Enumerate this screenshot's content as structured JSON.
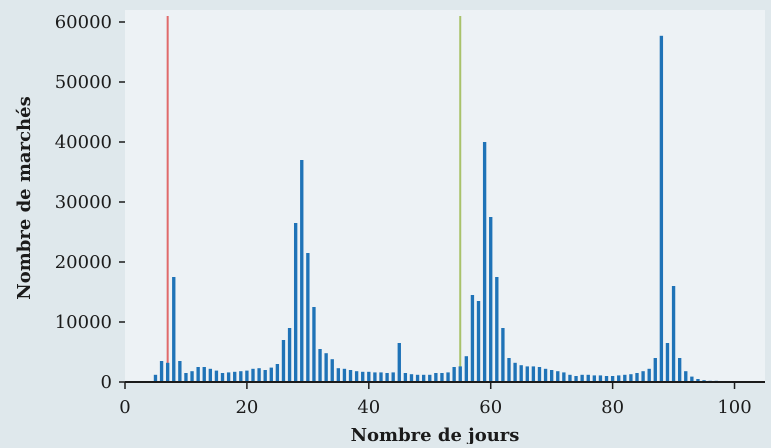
{
  "chart_data": {
    "type": "bar",
    "title": "",
    "xlabel": "Nombre de jours",
    "ylabel": "Nombre de marchés",
    "xlim": [
      0,
      105
    ],
    "ylim": [
      0,
      60000
    ],
    "x_ticks": [
      0,
      20,
      40,
      60,
      80,
      100
    ],
    "y_ticks": [
      0,
      10000,
      20000,
      30000,
      40000,
      50000,
      60000
    ],
    "y_tick_labels": [
      "0",
      "10000",
      "20000",
      "30000",
      "40000",
      "50000",
      "60000"
    ],
    "grid": "none",
    "legend": "none",
    "bars": {
      "x": [
        5,
        6,
        7,
        8,
        9,
        10,
        11,
        12,
        13,
        14,
        15,
        16,
        17,
        18,
        19,
        20,
        21,
        22,
        23,
        24,
        25,
        26,
        27,
        28,
        29,
        30,
        31,
        32,
        33,
        34,
        35,
        36,
        37,
        38,
        39,
        40,
        41,
        42,
        43,
        44,
        45,
        46,
        47,
        48,
        49,
        50,
        51,
        52,
        53,
        54,
        55,
        56,
        57,
        58,
        59,
        60,
        61,
        62,
        63,
        64,
        65,
        66,
        67,
        68,
        69,
        70,
        71,
        72,
        73,
        74,
        75,
        76,
        77,
        78,
        79,
        80,
        81,
        82,
        83,
        84,
        85,
        86,
        87,
        88,
        89,
        90,
        91,
        92,
        93,
        94,
        95,
        96,
        97,
        98,
        99,
        100
      ],
      "values": [
        1200,
        3500,
        3200,
        17500,
        3500,
        1500,
        1800,
        2500,
        2500,
        2200,
        1900,
        1500,
        1600,
        1700,
        1800,
        1900,
        2200,
        2300,
        2000,
        2400,
        3000,
        7000,
        9000,
        26500,
        37000,
        21500,
        12500,
        5500,
        4800,
        3800,
        2300,
        2200,
        2000,
        1800,
        1700,
        1700,
        1600,
        1600,
        1500,
        1600,
        6500,
        1500,
        1300,
        1200,
        1200,
        1200,
        1500,
        1500,
        1600,
        2500,
        2600,
        4300,
        14500,
        13500,
        40000,
        27500,
        17500,
        9000,
        4000,
        3200,
        2800,
        2600,
        2600,
        2500,
        2200,
        2000,
        1800,
        1600,
        1200,
        1000,
        1200,
        1200,
        1100,
        1100,
        1000,
        1000,
        1100,
        1200,
        1300,
        1500,
        1800,
        2200,
        4000,
        57700,
        6500,
        16000,
        4000,
        1800,
        900,
        500,
        300,
        200,
        200,
        150,
        100,
        100
      ]
    },
    "vertical_lines": [
      {
        "x": 7,
        "color": "#e06a6a"
      },
      {
        "x": 55,
        "color": "#a9c26a"
      }
    ],
    "colors": {
      "bar": "#1f73b7",
      "axis": "#1b1b1b",
      "background": "#dfe8ec",
      "plot_background": "#edf2f5"
    }
  }
}
